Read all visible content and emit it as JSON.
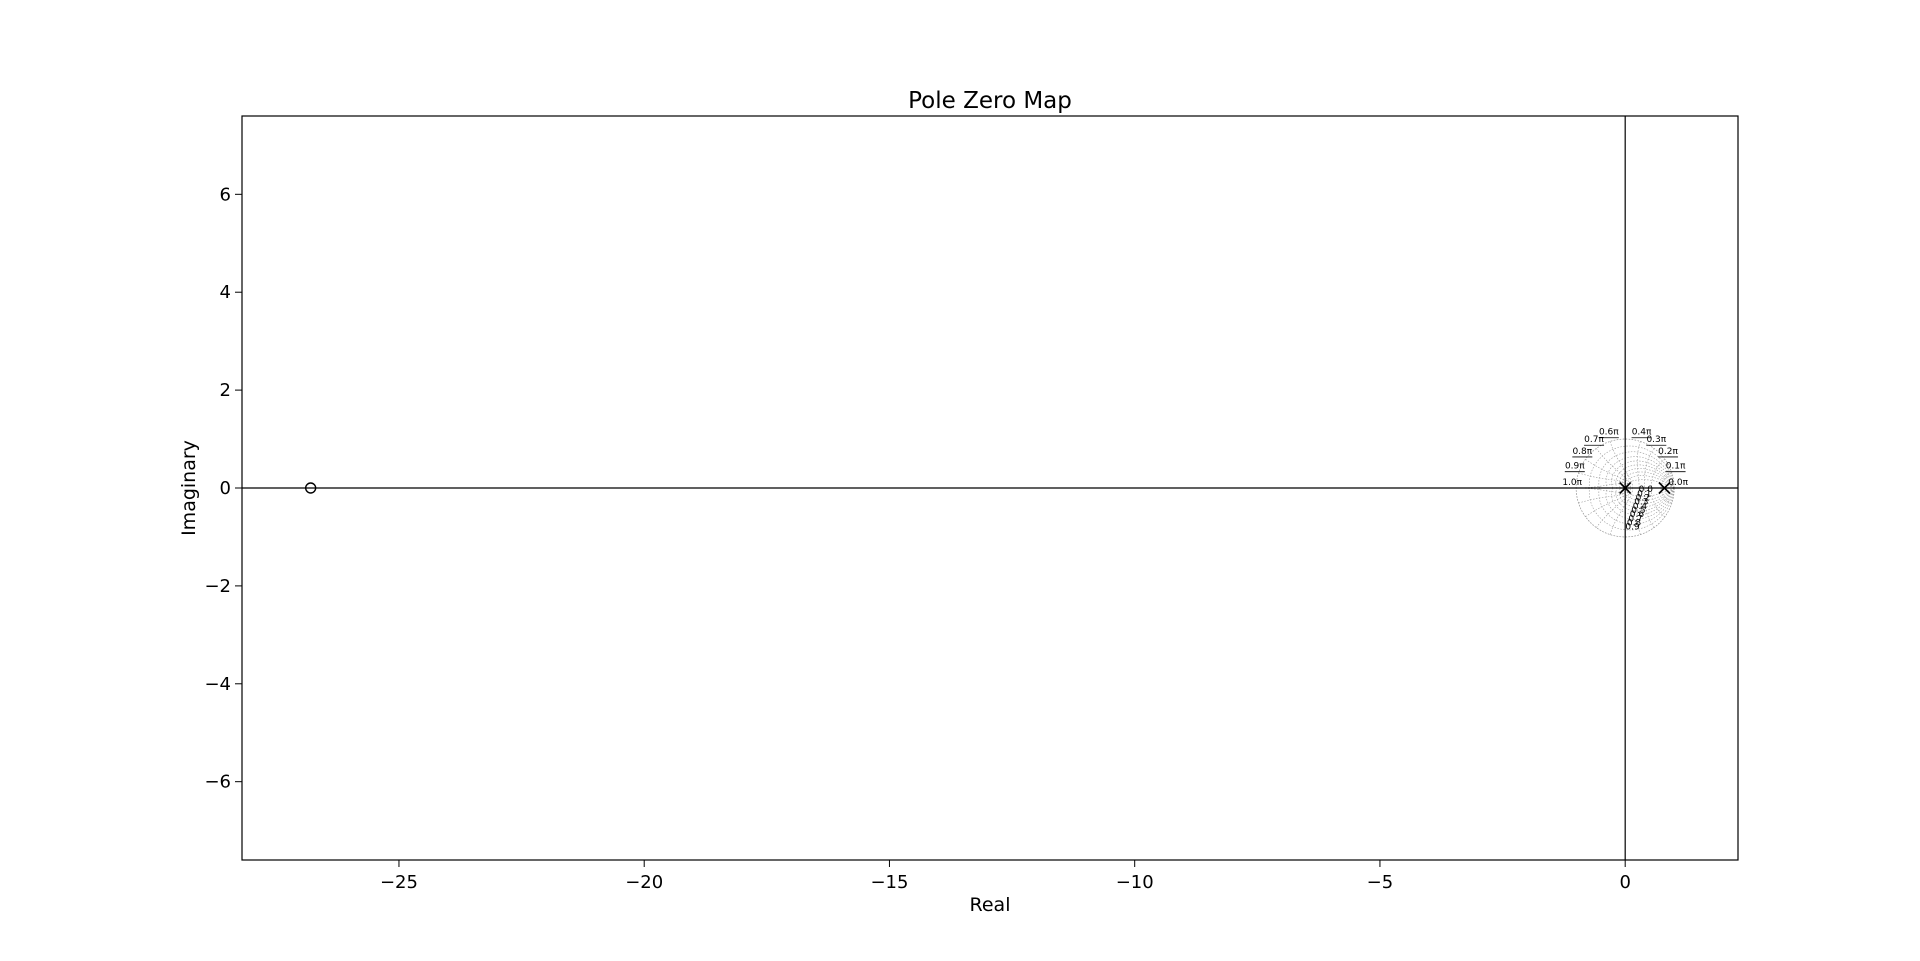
{
  "chart_data": {
    "type": "scatter",
    "title": "Pole Zero Map",
    "xlabel": "Real",
    "ylabel": "Imaginary",
    "xlim": [
      -28.2,
      2.3
    ],
    "ylim": [
      -7.6,
      7.6
    ],
    "x_ticks": [
      -25,
      -20,
      -15,
      -10,
      -5,
      0
    ],
    "x_tick_labels": [
      "−25",
      "−20",
      "−15",
      "−10",
      "−5",
      "0"
    ],
    "y_ticks": [
      6,
      4,
      2,
      0,
      -2,
      -4,
      -6
    ],
    "y_tick_labels": [
      "6",
      "4",
      "2",
      "0",
      "−2",
      "−4",
      "−6"
    ],
    "poles": [
      {
        "real": 0.0,
        "imag": 0.0
      },
      {
        "real": 0.8,
        "imag": 0.0
      }
    ],
    "zeros": [
      {
        "real": -26.8,
        "imag": 0.0
      }
    ],
    "zgrid": {
      "frequency_labels": [
        "0.0π",
        "0.1π",
        "0.2π",
        "0.3π",
        "0.4π",
        "0.6π",
        "0.7π",
        "0.8π",
        "0.9π",
        "1.0π"
      ],
      "frequency_values": [
        0.0,
        0.1,
        0.2,
        0.3,
        0.4,
        0.6,
        0.7,
        0.8,
        0.9,
        1.0
      ],
      "damping_values": [
        0.0,
        0.1,
        0.2,
        0.3,
        0.4,
        0.5,
        0.6,
        0.7,
        0.8,
        0.9
      ],
      "damping_labels": [
        "0.0",
        "0.1",
        "0.2",
        "0.3",
        "0.4",
        "0.5",
        "0.6",
        "0.7",
        "0.8",
        "0.9"
      ]
    },
    "grid": false
  }
}
